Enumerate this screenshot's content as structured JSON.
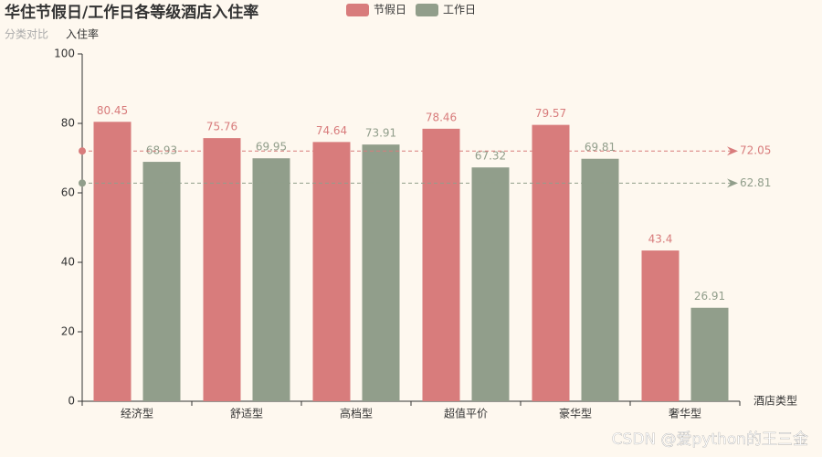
{
  "chart_data": {
    "type": "bar",
    "title": "华住节假日/工作日各等级酒店入住率",
    "subtitle": "分类对比",
    "x_label": "酒店类型",
    "y_label": "入住率",
    "categories": [
      "经济型",
      "舒适型",
      "高档型",
      "超值平价",
      "豪华型",
      "奢华型"
    ],
    "series": [
      {
        "name": "节假日",
        "color": "#d87c7c",
        "values": [
          80.45,
          75.76,
          74.64,
          78.46,
          79.57,
          43.4
        ],
        "average": 72.05
      },
      {
        "name": "工作日",
        "color": "#919e8b",
        "values": [
          68.93,
          69.95,
          73.91,
          67.32,
          69.81,
          26.91
        ],
        "average": 62.81
      }
    ],
    "ylim": [
      0,
      100
    ],
    "yticks": [
      0,
      20,
      40,
      60,
      80,
      100
    ],
    "grid": false,
    "legend": "top"
  },
  "watermark": "CSDN @爱python的王三金"
}
